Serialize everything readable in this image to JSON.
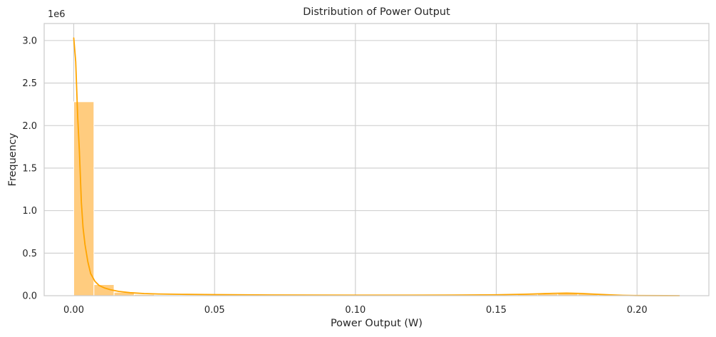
{
  "chart_data": {
    "type": "bar",
    "title": "Distribution of Power Output",
    "xlabel": "Power Output (W)",
    "ylabel": "Frequency",
    "y_offset_label": "1e6",
    "xlim": [
      -0.0105,
      0.2255
    ],
    "ylim": [
      0,
      3200000
    ],
    "x_ticks": [
      0.0,
      0.05,
      0.1,
      0.15,
      0.2
    ],
    "x_tick_labels": [
      "0.00",
      "0.05",
      "0.10",
      "0.15",
      "0.20"
    ],
    "y_ticks": [
      0,
      500000,
      1000000,
      1500000,
      2000000,
      2500000,
      3000000
    ],
    "y_tick_labels": [
      "0.0",
      "0.5",
      "1.0",
      "1.5",
      "2.0",
      "2.5",
      "3.0"
    ],
    "grid": true,
    "bin_width": 0.00716,
    "bins_start": [
      0.0,
      0.00716,
      0.01432,
      0.02148,
      0.02864,
      0.0358,
      0.04296,
      0.05012,
      0.05728,
      0.06444,
      0.0716,
      0.07876,
      0.08592,
      0.09308,
      0.10024,
      0.1074,
      0.11456,
      0.12172,
      0.12888,
      0.13604,
      0.1432,
      0.15036,
      0.15752,
      0.16468,
      0.17184,
      0.179,
      0.18616,
      0.19332,
      0.20048,
      0.20764
    ],
    "values": [
      2280000,
      130000,
      40000,
      15000,
      8000,
      5000,
      4000,
      3000,
      2500,
      2000,
      2000,
      2000,
      2000,
      2000,
      2000,
      2000,
      2000,
      2500,
      3000,
      4000,
      6000,
      10000,
      15000,
      22000,
      28000,
      22000,
      12000,
      5000,
      2000,
      1000
    ],
    "kde": {
      "x": [
        0.0,
        0.0007,
        0.0014,
        0.002,
        0.0027,
        0.0033,
        0.004,
        0.005,
        0.006,
        0.0075,
        0.009,
        0.011,
        0.013,
        0.016,
        0.02,
        0.025,
        0.03,
        0.04,
        0.05,
        0.07,
        0.1,
        0.12,
        0.14,
        0.15,
        0.16,
        0.165,
        0.17,
        0.175,
        0.18,
        0.185,
        0.19,
        0.195,
        0.2,
        0.21,
        0.215
      ],
      "y": [
        3030000,
        2750000,
        2100000,
        1700000,
        1100000,
        800000,
        600000,
        400000,
        260000,
        170000,
        120000,
        90000,
        70000,
        50000,
        35000,
        25000,
        20000,
        15000,
        12000,
        8000,
        6000,
        6000,
        8000,
        10000,
        17000,
        22000,
        27000,
        30000,
        26000,
        18000,
        10000,
        4000,
        1500,
        500,
        0
      ]
    },
    "colors": {
      "bar_fill": "#ffcc7f",
      "bar_edge": "#ffffff",
      "line": "#ffa500",
      "grid": "#cccccc",
      "background": "#ffffff"
    }
  }
}
